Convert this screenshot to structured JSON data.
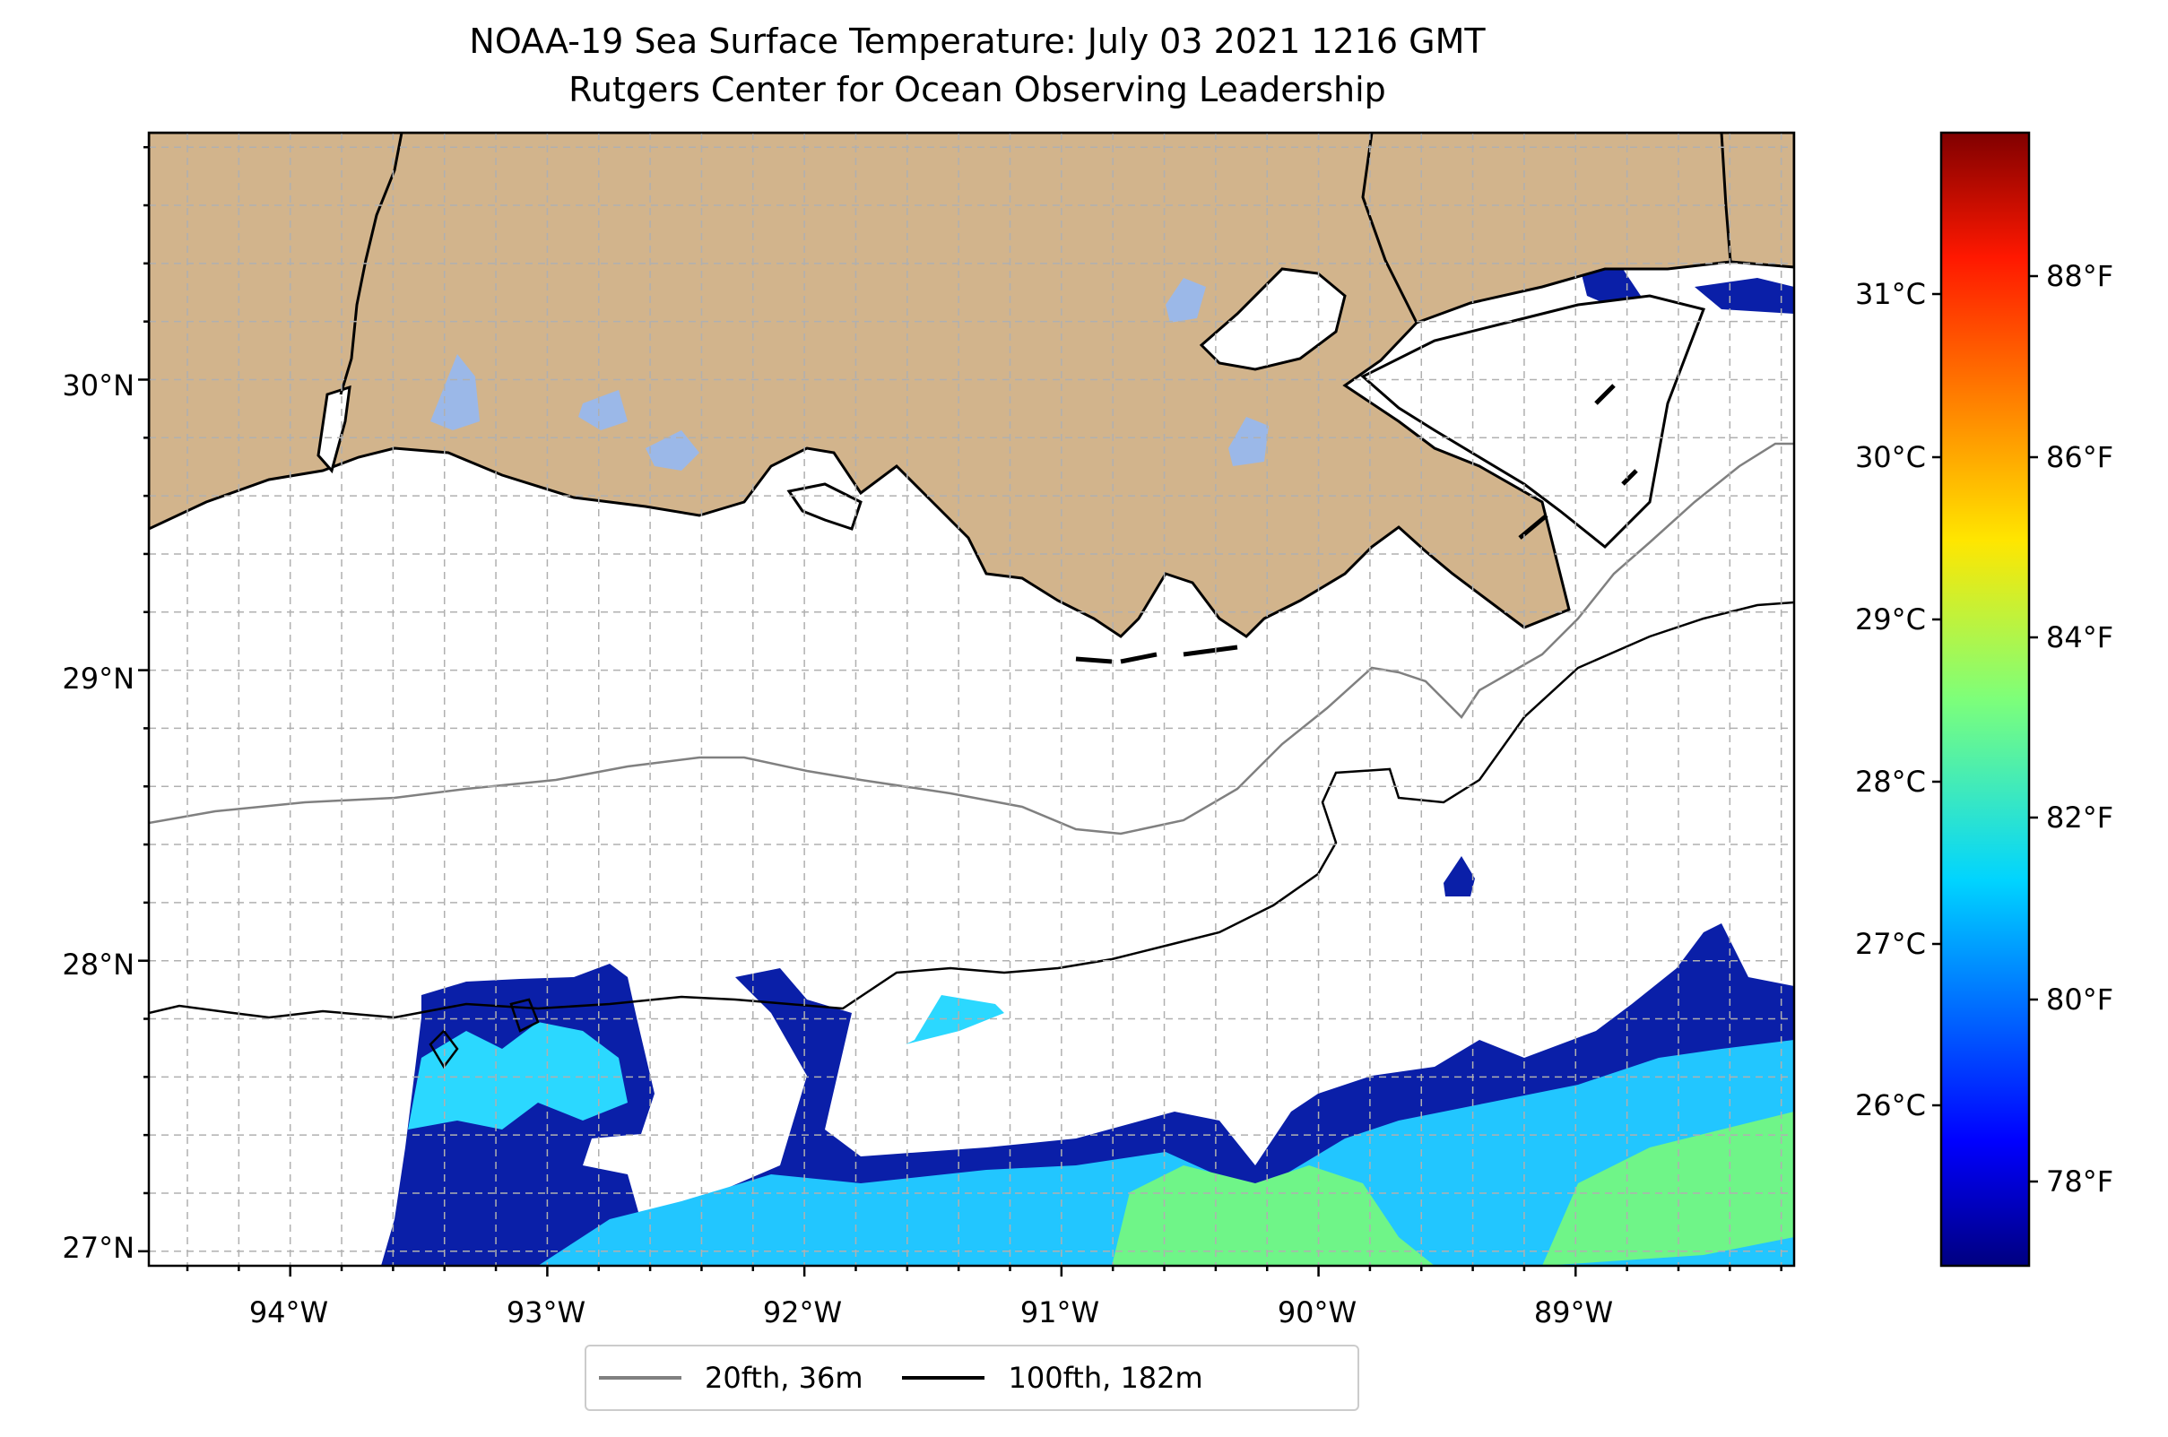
{
  "title": {
    "line1": "NOAA-19 Sea Surface Temperature: July 03 2021 1216 GMT",
    "line2": "Rutgers Center for Ocean Observing Leadership"
  },
  "map": {
    "lon_range": [
      -94.55,
      -88.15
    ],
    "lat_range": [
      26.95,
      30.85
    ],
    "grid": true,
    "land_color": "#d2b48c",
    "lake_color": "#9bb8e8",
    "lon_ticks": [
      "94°W",
      "93°W",
      "92°W",
      "91°W",
      "90°W",
      "89°W"
    ],
    "lat_ticks": [
      "27°N",
      "28°N",
      "29°N",
      "30°N"
    ]
  },
  "colorbar": {
    "colormap": "jet",
    "celsius_ticks": [
      "26°C",
      "27°C",
      "28°C",
      "29°C",
      "30°C",
      "31°C"
    ],
    "fahrenheit_ticks": [
      "78°F",
      "80°F",
      "82°F",
      "84°F",
      "86°F",
      "88°F"
    ]
  },
  "legend": {
    "items": [
      {
        "label": "20fth, 36m",
        "color": "#808080"
      },
      {
        "label": "100fth, 182m",
        "color": "#000000"
      }
    ]
  }
}
